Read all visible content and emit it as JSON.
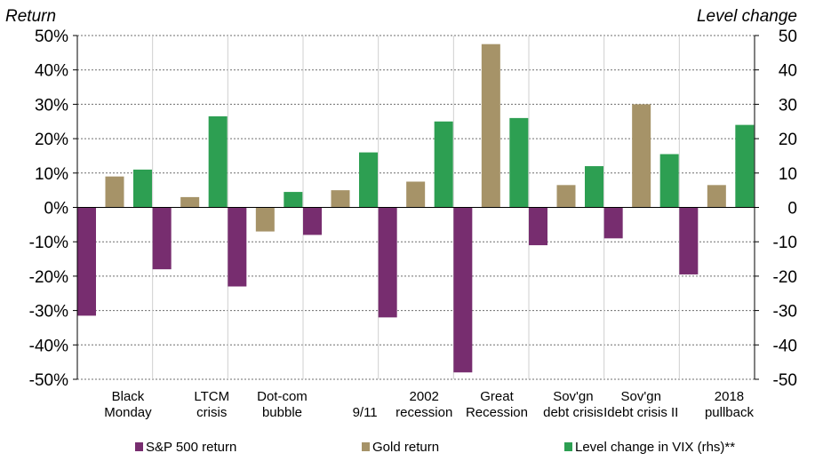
{
  "chart_data": {
    "type": "bar",
    "title": "",
    "ylabel_left": "Return",
    "ylabel_right": "Level change",
    "categories": [
      [
        "Black",
        "Monday"
      ],
      [
        "LTCM",
        "crisis"
      ],
      [
        "Dot-com",
        "bubble"
      ],
      [
        "",
        "9/11"
      ],
      [
        "2002",
        "recession"
      ],
      [
        "Great",
        "Recession"
      ],
      [
        "Sov'gn",
        "debt crisis"
      ],
      [
        "Sov'gn",
        "Idebt crisis II"
      ],
      [
        "2018",
        "pullback"
      ]
    ],
    "ylim": [
      -50,
      50
    ],
    "yticks": [
      50,
      40,
      30,
      20,
      10,
      0,
      -10,
      -20,
      -30,
      -40,
      -50
    ],
    "left_tick_suffix": "%",
    "series": [
      {
        "name": "S&P 500 return",
        "color": "#772d6f",
        "unit": "%",
        "axis": "left",
        "values": [
          -31.5,
          -18,
          -23,
          -8,
          -32,
          -48,
          -11,
          -9,
          -19.5
        ]
      },
      {
        "name": "Gold return",
        "color": "#a69368",
        "unit": "%",
        "axis": "left",
        "values": [
          9,
          3,
          -7,
          5,
          7.5,
          47.5,
          6.5,
          30,
          6.5
        ]
      },
      {
        "name": "Level change in VIX (rhs)**",
        "color": "#2d9f52",
        "unit": "points",
        "axis": "right",
        "values": [
          11,
          26.5,
          4.5,
          16,
          25,
          26,
          12,
          15.5,
          24
        ]
      }
    ],
    "legend_position": "bottom"
  }
}
